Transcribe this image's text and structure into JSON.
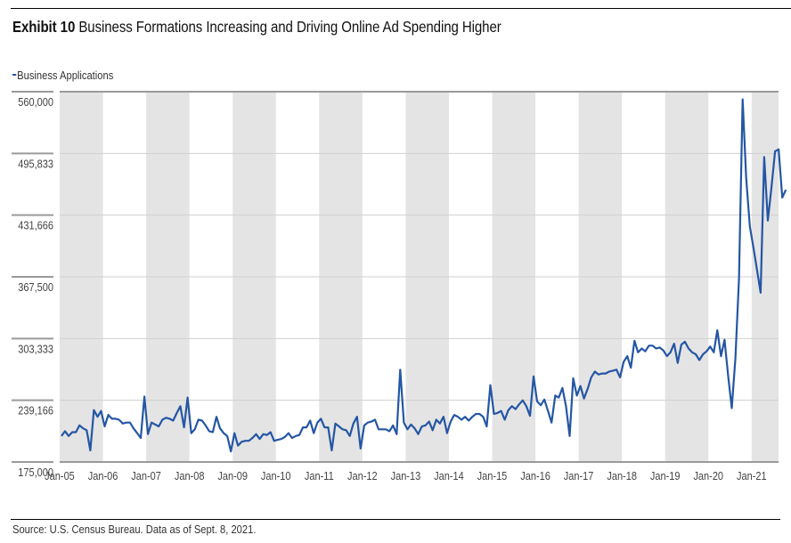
{
  "header": {
    "exhibit_label": "Exhibit 10",
    "title": "Business Formations Increasing and Driving Online Ad Spending Higher"
  },
  "footer": {
    "source": "Source: U.S. Census Bureau. Data as of Sept. 8, 2021."
  },
  "colors": {
    "line": "#2456a4",
    "band": "#e4e4e4",
    "grid": "#d0d0d0"
  },
  "chart_data": {
    "type": "line",
    "title": "Business Formations Increasing and Driving Online Ad Spending Higher",
    "xlabel": "",
    "ylabel": "",
    "legend": {
      "position": "top-left",
      "entries": [
        "Business Applications"
      ]
    },
    "ylim": [
      175000,
      560000
    ],
    "y_ticks": [
      "175,000",
      "239,166",
      "303,333",
      "367,500",
      "431,666",
      "495,833",
      "560,000"
    ],
    "y_tick_values": [
      175000,
      239166,
      303333,
      367500,
      431666,
      495833,
      560000
    ],
    "x_ticks": [
      "Jan-05",
      "Jan-06",
      "Jan-07",
      "Jan-08",
      "Jan-09",
      "Jan-10",
      "Jan-11",
      "Jan-12",
      "Jan-13",
      "Jan-14",
      "Jan-15",
      "Jan-16",
      "Jan-17",
      "Jan-18",
      "Jan-19",
      "Jan-20",
      "Jan-21"
    ],
    "x_start": "Jan-05",
    "frequency": "monthly",
    "shaded_years": [
      "2005",
      "2007",
      "2009",
      "2011",
      "2013",
      "2015",
      "2017",
      "2019",
      "2021"
    ],
    "grid": true,
    "series": [
      {
        "name": "Business Applications",
        "values": [
          202000,
          207000,
          202000,
          206000,
          206000,
          213000,
          210000,
          208000,
          187000,
          229000,
          222000,
          228000,
          212000,
          224000,
          220000,
          220000,
          219000,
          215000,
          216000,
          216000,
          210000,
          205000,
          200000,
          243000,
          204000,
          216000,
          214000,
          212000,
          219000,
          221000,
          220000,
          218000,
          226000,
          233000,
          211000,
          242000,
          205000,
          209000,
          219000,
          218000,
          213000,
          207000,
          206000,
          222000,
          210000,
          205000,
          202000,
          186000,
          205000,
          192000,
          196000,
          197000,
          197000,
          200000,
          204000,
          199000,
          204000,
          203000,
          206000,
          197000,
          198000,
          199000,
          201000,
          205000,
          200000,
          202000,
          203000,
          211000,
          211000,
          218000,
          205000,
          216000,
          220000,
          211000,
          211000,
          187000,
          215000,
          212000,
          209000,
          208000,
          202000,
          215000,
          222000,
          189000,
          213000,
          216000,
          217000,
          219000,
          209000,
          209000,
          209000,
          207000,
          213000,
          204000,
          271000,
          216000,
          209000,
          214000,
          210000,
          204000,
          212000,
          213000,
          217000,
          208000,
          219000,
          215000,
          222000,
          205000,
          217000,
          224000,
          222000,
          219000,
          222000,
          218000,
          222000,
          225000,
          225000,
          222000,
          212000,
          255000,
          225000,
          226000,
          228000,
          219000,
          229000,
          233000,
          230000,
          235000,
          239000,
          233000,
          223000,
          264000,
          238000,
          234000,
          240000,
          228000,
          216000,
          244000,
          242000,
          252000,
          233000,
          202000,
          262000,
          244000,
          254000,
          241000,
          251000,
          263000,
          269000,
          266000,
          267000,
          267000,
          269000,
          270000,
          271000,
          263000,
          279000,
          285000,
          273000,
          301000,
          289000,
          293000,
          290000,
          296000,
          296000,
          293000,
          294000,
          291000,
          285000,
          289000,
          298000,
          278000,
          297000,
          300000,
          293000,
          289000,
          287000,
          281000,
          287000,
          290000,
          295000,
          289000,
          312000,
          285000,
          302000,
          264000,
          231000,
          283000,
          365000,
          552000,
          470000,
          420000,
          398000,
          375000,
          351000,
          492000,
          426000,
          460000,
          498000,
          500000,
          450000,
          458000
        ]
      }
    ]
  }
}
